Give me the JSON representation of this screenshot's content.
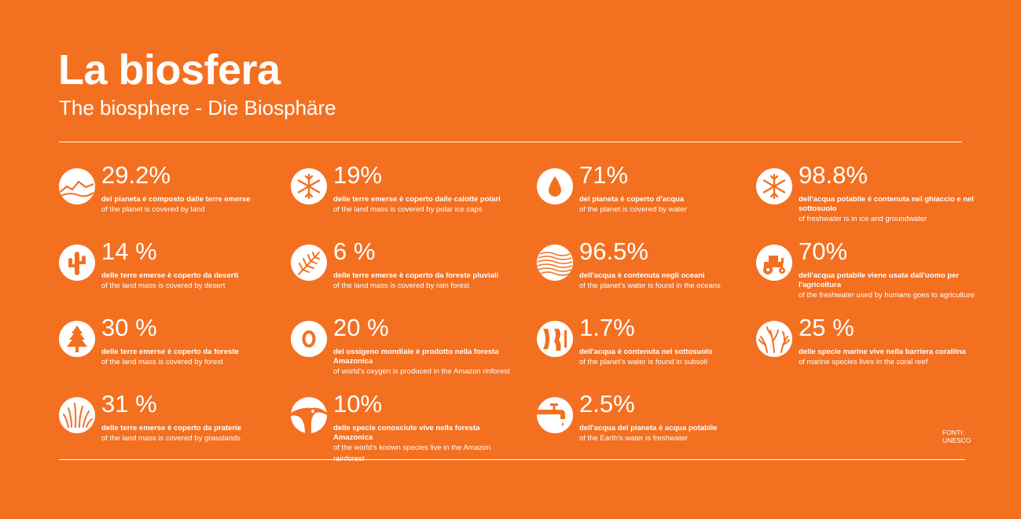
{
  "title": "La biosfera",
  "subtitle": "The biosphere - Die Biosphäre",
  "stats": [
    {
      "value": "29.2%",
      "it": "del pianeta è composto dalle terre emerse",
      "en": "of the planet is covered by land",
      "icon": "land-icon"
    },
    {
      "value": "19%",
      "it": "delle terre emerse è coperto dalle calotte polari",
      "en": "of the land mass is covered by polar ice caps",
      "icon": "snowflake-icon"
    },
    {
      "value": "71%",
      "it": "del pianeta è coperto d'acqua",
      "en": "of the planet is covered by water",
      "icon": "water-drop-icon"
    },
    {
      "value": "98.8%",
      "it": "dell'acqua potabile è contenuta nel ghiaccio e nel sottosuolo",
      "en": "of freshwater is in ice and groundwater",
      "icon": "snowflake-icon"
    },
    {
      "value": "14 %",
      "it": "delle terre emerse è coperto da deserti",
      "en": "of the land mass is covered by desert",
      "icon": "cactus-icon"
    },
    {
      "value": "6 %",
      "it": "delle terre emerse è coperto da foreste pluviali",
      "en": "of the land mass is covered by rain forest",
      "icon": "fern-leaf-icon"
    },
    {
      "value": "96.5%",
      "it": "dell'acqua è contenuta negli oceani",
      "en": "of the planet's water is found in the oceans",
      "icon": "ocean-waves-icon"
    },
    {
      "value": "70%",
      "it": "dell'acqua potabile viene usata dall'uomo per l'agricoltura",
      "en": "of the freshwater used by humans goes to agriculture",
      "icon": "tractor-icon"
    },
    {
      "value": "30 %",
      "it": "delle terre emerse è coperto da foreste",
      "en": "of the land mass is covered by forest",
      "icon": "pine-tree-icon"
    },
    {
      "value": "20 %",
      "it": "del ossigeno mondiale è prodotto nella foresta Amazonica",
      "en": "of world's oxygen is produced in the Amazon rinforest",
      "icon": "oxygen-icon"
    },
    {
      "value": "1.7%",
      "it": "dell'acqua è contenuta nel sottosuolo",
      "en": "of the planet's water is found in subsoil",
      "icon": "subsoil-icon"
    },
    {
      "value": "25 %",
      "it": "delle specie marine vive nella barriera corallina",
      "en": "of marine species lives in the coral reef",
      "icon": "coral-icon"
    },
    {
      "value": "31 %",
      "it": "delle terre emerse è coperto da praterie",
      "en": "of the land mass is covered by grasslands",
      "icon": "grass-icon"
    },
    {
      "value": "10%",
      "it": "delle specie conosciute vive nella foresta Amazonica",
      "en": "of the world's known species live in the Amazon rainforest",
      "icon": "toucan-icon"
    },
    {
      "value": "2.5%",
      "it": "dell'acqua del pianeta è acqua potabile",
      "en": "of the Earth's water is freshwater",
      "icon": "faucet-icon"
    }
  ],
  "sources": {
    "label": "FONTI:",
    "name": "UNESCO"
  },
  "colors": {
    "background": "#F37021",
    "foreground": "#FFFFFF"
  }
}
